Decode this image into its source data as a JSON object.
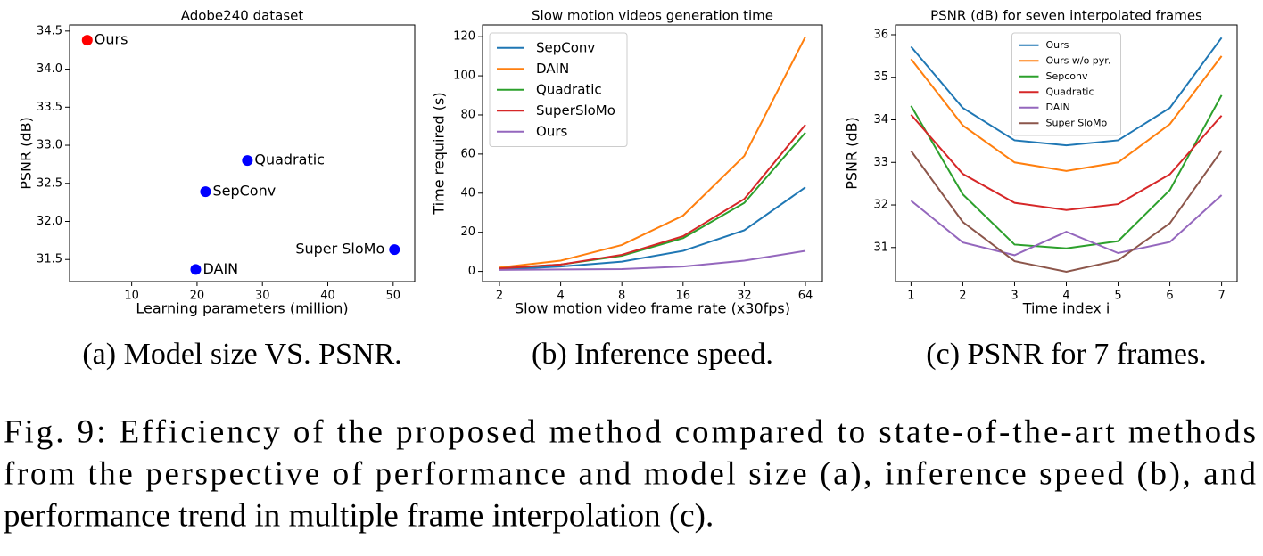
{
  "chart_data": [
    {
      "type": "scatter",
      "title": "Adobe240 dataset",
      "xlabel": "Learning parameters (million)",
      "ylabel": "PSNR (dB)",
      "labels": [
        "Ours",
        "Quadratic",
        "SepConv",
        "DAIN",
        "Super SloMo"
      ],
      "x": [
        3.2,
        27.7,
        21.3,
        19.8,
        50.2
      ],
      "values": [
        34.38,
        32.8,
        32.39,
        31.37,
        31.63
      ],
      "colors": [
        "#ff0000",
        "#0000ff",
        "#0000ff",
        "#0000ff",
        "#0000ff"
      ],
      "xlim": [
        0.5,
        53.3
      ],
      "xticks": [
        10,
        20,
        30,
        40,
        50
      ],
      "ylim": [
        31.21,
        34.58
      ],
      "yticks": [
        31.5,
        {
          "value": 32,
          "label": "32.0"
        },
        32.5,
        {
          "value": 33,
          "label": "33.0"
        },
        33.5,
        {
          "value": 34,
          "label": "34.0"
        },
        34.5
      ],
      "subcaption": "(a) Model size VS. PSNR."
    },
    {
      "type": "line",
      "title": "Slow motion videos generation time",
      "xlabel": "Slow motion video frame rate (x30fps)",
      "ylabel": "Time required (s)",
      "categories": [
        2,
        4,
        8,
        16,
        32,
        64
      ],
      "series": [
        {
          "name": "SepConv",
          "color": "#1f77b4",
          "values": [
            1,
            2.5,
            5,
            10.5,
            21,
            43
          ]
        },
        {
          "name": "DAIN",
          "color": "#ff7f0e",
          "values": [
            2,
            5.5,
            13.5,
            28.5,
            59,
            120
          ]
        },
        {
          "name": "Quadratic",
          "color": "#2ca02c",
          "values": [
            1.5,
            3.5,
            8,
            17,
            35,
            71
          ]
        },
        {
          "name": "SuperSloMo",
          "color": "#d62728",
          "values": [
            1.5,
            3.5,
            8.5,
            18,
            37,
            75
          ]
        },
        {
          "name": "Ours",
          "color": "#9467bd",
          "values": [
            0.8,
            1,
            1.2,
            2.5,
            5.5,
            10.5
          ]
        }
      ],
      "ylim": [
        -5.2,
        126
      ],
      "yticks": [
        0,
        20,
        40,
        60,
        80,
        100,
        120
      ],
      "legend": "upper-left",
      "subcaption": "(b) Inference speed."
    },
    {
      "type": "line",
      "title": "PSNR (dB) for seven interpolated frames",
      "xlabel": "Time index i",
      "ylabel": "PSNR (dB)",
      "x": [
        1,
        2,
        3,
        4,
        5,
        6,
        7
      ],
      "series": [
        {
          "name": "Ours",
          "color": "#1f77b4",
          "values": [
            35.72,
            34.28,
            33.52,
            33.4,
            33.52,
            34.28,
            35.93
          ]
        },
        {
          "name": "Ours w/o pyr.",
          "color": "#ff7f0e",
          "values": [
            35.43,
            33.87,
            33.0,
            32.8,
            33.0,
            33.9,
            35.5
          ]
        },
        {
          "name": "Sepconv",
          "color": "#2ca02c",
          "values": [
            34.33,
            32.25,
            31.07,
            30.98,
            31.15,
            32.35,
            34.58
          ]
        },
        {
          "name": "Quadratic",
          "color": "#d62728",
          "values": [
            34.12,
            32.73,
            32.05,
            31.88,
            32.02,
            32.72,
            34.1
          ]
        },
        {
          "name": "DAIN",
          "color": "#9467bd",
          "values": [
            32.1,
            31.12,
            30.82,
            31.37,
            30.87,
            31.13,
            32.23
          ]
        },
        {
          "name": "Super SloMo",
          "color": "#8c564b",
          "values": [
            33.27,
            31.6,
            30.68,
            30.43,
            30.7,
            31.57,
            33.28
          ]
        }
      ],
      "xlim": [
        0.7,
        7.3
      ],
      "xticks": [
        1,
        2,
        3,
        4,
        5,
        6,
        7
      ],
      "ylim": [
        30.2,
        36.23
      ],
      "yticks": [
        31,
        32,
        33,
        34,
        35,
        36
      ],
      "legend": "upper-center",
      "subcaption": "(c) PSNR for 7 frames."
    }
  ],
  "caption": [
    "Fig. 9: Efficiency of the proposed method compared to state-of-the-art methods",
    "from the perspective of performance and model size (a), inference speed (b), and",
    "performance trend in multiple frame interpolation (c)."
  ]
}
